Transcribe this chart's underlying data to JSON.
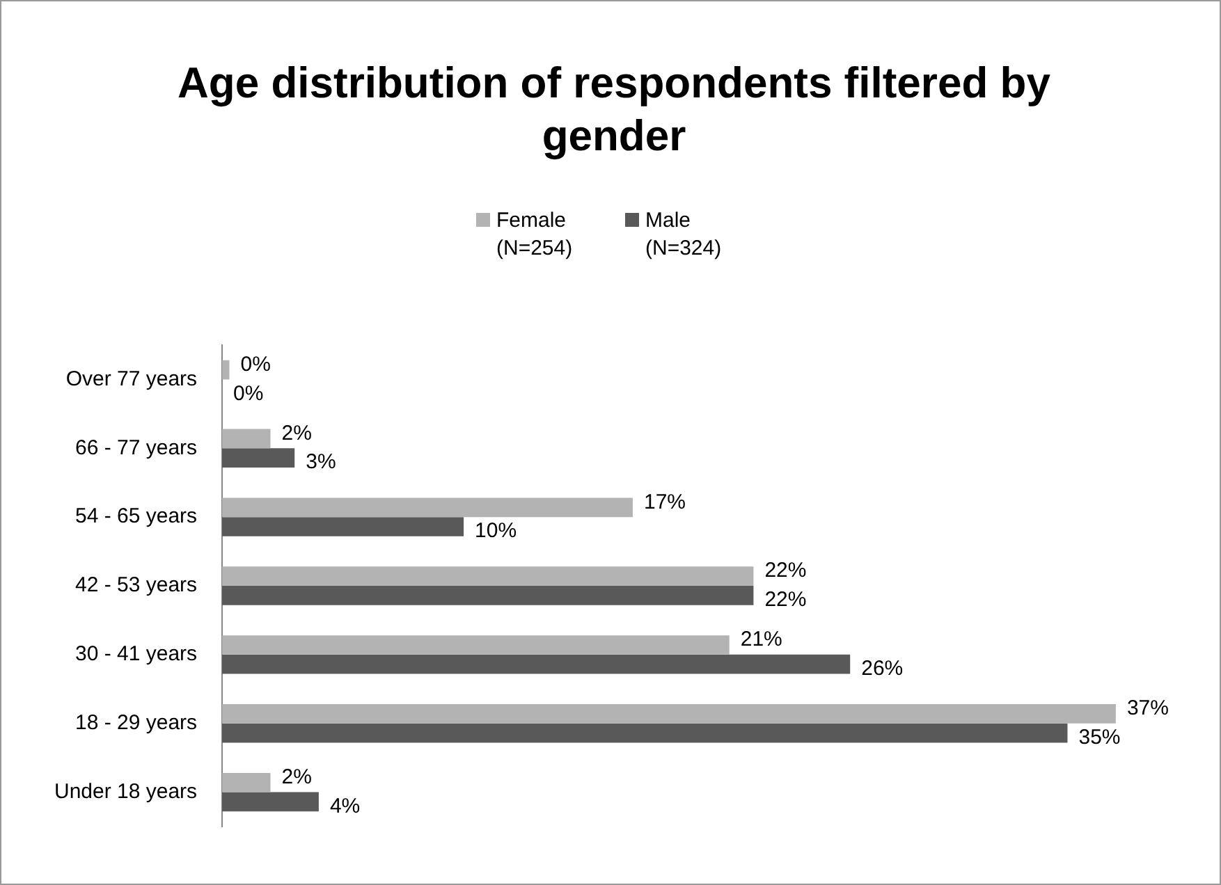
{
  "chart_data": {
    "type": "bar",
    "orientation": "horizontal",
    "title": "Age distribution of respondents filtered by gender",
    "categories": [
      "Over 77 years",
      "66 - 77 years",
      "54 - 65 years",
      "42 - 53 years",
      "30 - 41 years",
      "18 - 29 years",
      "Under 18 years"
    ],
    "series": [
      {
        "name": "Female (N=254)",
        "color": "#b3b3b3",
        "values": [
          0.3,
          2,
          17,
          22,
          21,
          37,
          2
        ],
        "value_labels": [
          "0%",
          "2%",
          "17%",
          "22%",
          "21%",
          "37%",
          "2%"
        ]
      },
      {
        "name": "Male (N=324)",
        "color": "#595959",
        "values": [
          0,
          3,
          10,
          22,
          26,
          35,
          4
        ],
        "value_labels": [
          "0%",
          "3%",
          "10%",
          "22%",
          "26%",
          "35%",
          "4%"
        ]
      }
    ],
    "legend": "top"
  }
}
